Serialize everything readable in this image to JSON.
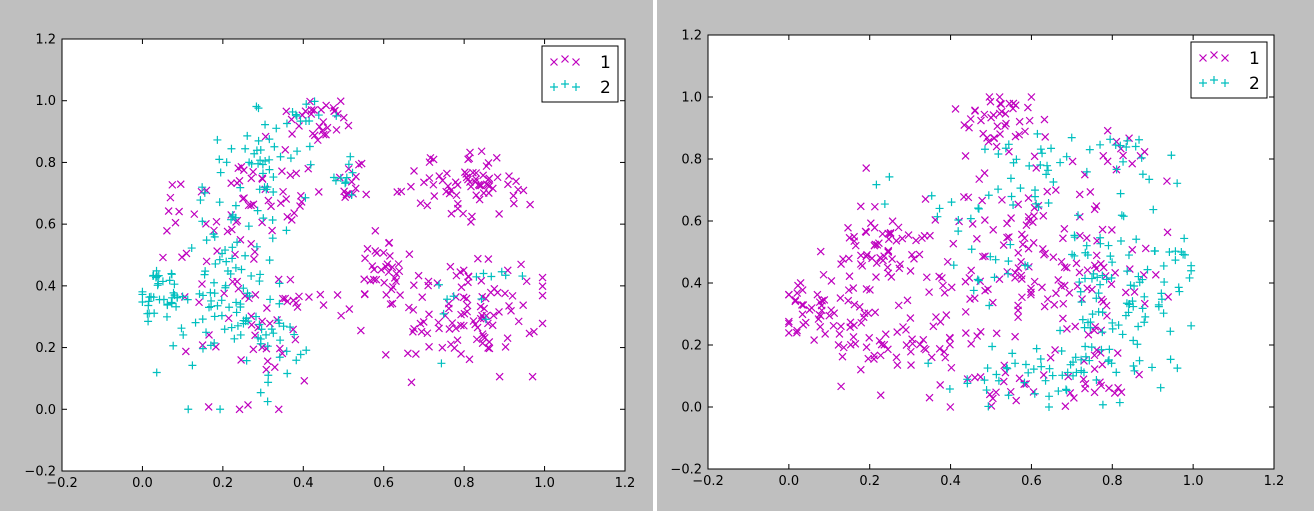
{
  "colors": {
    "series1": "#bf00bf",
    "series2": "#00bfbf",
    "figure_bg": "#bfbfbf",
    "axes_bg": "#ffffff"
  },
  "chart_data": [
    {
      "type": "scatter",
      "title": "",
      "xlabel": "",
      "ylabel": "",
      "xlim": [
        -0.2,
        1.2
      ],
      "ylim": [
        -0.2,
        1.2
      ],
      "xticks": [
        "−0.2",
        "0.0",
        "0.2",
        "0.4",
        "0.6",
        "0.8",
        "1.0",
        "1.2"
      ],
      "yticks": [
        "−0.2",
        "0.0",
        "0.2",
        "0.4",
        "0.6",
        "0.8",
        "1.0",
        "1.2"
      ],
      "legend_position": "top-right",
      "series": [
        {
          "name": "1",
          "marker": "x",
          "color": "#bf00bf",
          "clusters": [
            {
              "cx": 0.44,
              "cy": 0.93,
              "sx": 0.04,
              "sy": 0.04,
              "n": 30
            },
            {
              "cx": 0.33,
              "cy": 0.7,
              "sx": 0.07,
              "sy": 0.08,
              "n": 40
            },
            {
              "cx": 0.51,
              "cy": 0.74,
              "sx": 0.02,
              "sy": 0.03,
              "n": 12
            },
            {
              "cx": 0.27,
              "cy": 0.25,
              "sx": 0.07,
              "sy": 0.12,
              "n": 40
            },
            {
              "cx": 0.19,
              "cy": 0.52,
              "sx": 0.05,
              "sy": 0.12,
              "n": 20
            },
            {
              "cx": 0.1,
              "cy": 0.6,
              "sx": 0.02,
              "sy": 0.1,
              "n": 8
            },
            {
              "cx": 0.6,
              "cy": 0.46,
              "sx": 0.03,
              "sy": 0.06,
              "n": 35
            },
            {
              "cx": 0.82,
              "cy": 0.74,
              "sx": 0.07,
              "sy": 0.06,
              "n": 70
            },
            {
              "cx": 0.82,
              "cy": 0.32,
              "sx": 0.09,
              "sy": 0.1,
              "n": 100
            },
            {
              "cx": 0.43,
              "cy": 0.33,
              "sx": 0.05,
              "sy": 0.03,
              "n": 10
            }
          ]
        },
        {
          "name": "2",
          "marker": "+",
          "color": "#00bfbf",
          "clusters": [
            {
              "cx": 0.05,
              "cy": 0.38,
              "sx": 0.04,
              "sy": 0.04,
              "n": 40
            },
            {
              "cx": 0.22,
              "cy": 0.4,
              "sx": 0.07,
              "sy": 0.18,
              "n": 90
            },
            {
              "cx": 0.3,
              "cy": 0.82,
              "sx": 0.06,
              "sy": 0.09,
              "n": 40
            },
            {
              "cx": 0.42,
              "cy": 0.96,
              "sx": 0.03,
              "sy": 0.03,
              "n": 10
            },
            {
              "cx": 0.5,
              "cy": 0.75,
              "sx": 0.02,
              "sy": 0.03,
              "n": 10
            },
            {
              "cx": 0.32,
              "cy": 0.2,
              "sx": 0.05,
              "sy": 0.1,
              "n": 25
            },
            {
              "cx": 0.85,
              "cy": 0.42,
              "sx": 0.05,
              "sy": 0.05,
              "n": 8
            },
            {
              "cx": 0.74,
              "cy": 0.28,
              "sx": 0.02,
              "sy": 0.08,
              "n": 5
            }
          ]
        }
      ]
    },
    {
      "type": "scatter",
      "title": "",
      "xlabel": "",
      "ylabel": "",
      "xlim": [
        -0.2,
        1.2
      ],
      "ylim": [
        -0.2,
        1.2
      ],
      "xticks": [
        "−0.2",
        "0.0",
        "0.2",
        "0.4",
        "0.6",
        "0.8",
        "1.0",
        "1.2"
      ],
      "yticks": [
        "−0.2",
        "0.0",
        "0.2",
        "0.4",
        "0.6",
        "0.8",
        "1.0",
        "1.2"
      ],
      "legend_position": "top-right",
      "series": [
        {
          "name": "1",
          "marker": "x",
          "color": "#bf00bf",
          "clusters": [
            {
              "cx": 0.05,
              "cy": 0.33,
              "sx": 0.04,
              "sy": 0.04,
              "n": 35
            },
            {
              "cx": 0.2,
              "cy": 0.5,
              "sx": 0.06,
              "sy": 0.09,
              "n": 60
            },
            {
              "cx": 0.18,
              "cy": 0.22,
              "sx": 0.07,
              "sy": 0.06,
              "n": 40
            },
            {
              "cx": 0.36,
              "cy": 0.3,
              "sx": 0.06,
              "sy": 0.12,
              "n": 50
            },
            {
              "cx": 0.52,
              "cy": 0.93,
              "sx": 0.05,
              "sy": 0.05,
              "n": 40
            },
            {
              "cx": 0.55,
              "cy": 0.6,
              "sx": 0.07,
              "sy": 0.12,
              "n": 60
            },
            {
              "cx": 0.72,
              "cy": 0.4,
              "sx": 0.1,
              "sy": 0.12,
              "n": 80
            },
            {
              "cx": 0.82,
              "cy": 0.82,
              "sx": 0.05,
              "sy": 0.04,
              "n": 12
            },
            {
              "cx": 0.55,
              "cy": 0.08,
              "sx": 0.06,
              "sy": 0.03,
              "n": 15
            },
            {
              "cx": 0.7,
              "cy": 0.1,
              "sx": 0.07,
              "sy": 0.05,
              "n": 20
            }
          ]
        },
        {
          "name": "2",
          "marker": "+",
          "color": "#00bfbf",
          "clusters": [
            {
              "cx": 0.66,
              "cy": 0.1,
              "sx": 0.12,
              "sy": 0.05,
              "n": 55
            },
            {
              "cx": 0.82,
              "cy": 0.4,
              "sx": 0.08,
              "sy": 0.14,
              "n": 90
            },
            {
              "cx": 0.6,
              "cy": 0.75,
              "sx": 0.06,
              "sy": 0.08,
              "n": 30
            },
            {
              "cx": 0.84,
              "cy": 0.83,
              "sx": 0.05,
              "sy": 0.04,
              "n": 15
            },
            {
              "cx": 0.5,
              "cy": 0.5,
              "sx": 0.05,
              "sy": 0.1,
              "n": 20
            },
            {
              "cx": 0.95,
              "cy": 0.45,
              "sx": 0.03,
              "sy": 0.04,
              "n": 10
            },
            {
              "cx": 0.22,
              "cy": 0.7,
              "sx": 0.02,
              "sy": 0.02,
              "n": 3
            },
            {
              "cx": 0.37,
              "cy": 0.62,
              "sx": 0.02,
              "sy": 0.03,
              "n": 4
            }
          ]
        }
      ]
    }
  ]
}
